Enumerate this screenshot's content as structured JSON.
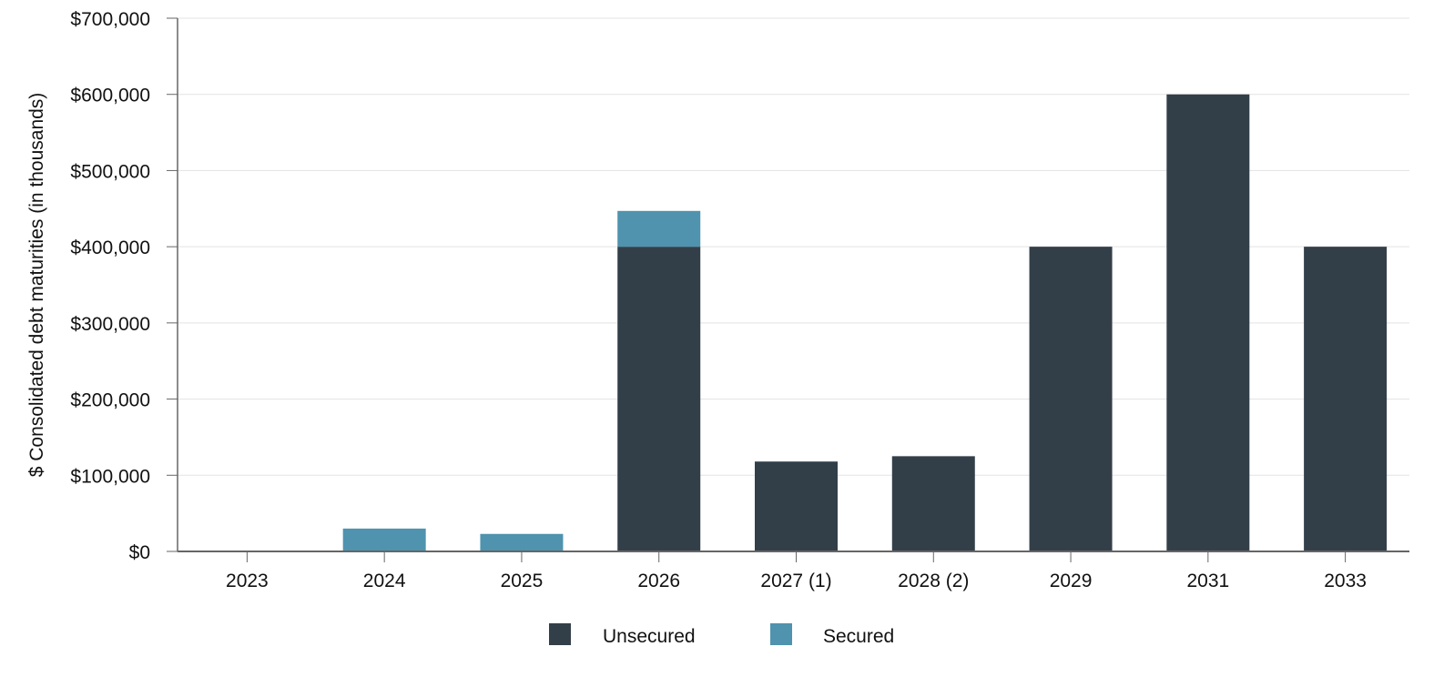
{
  "chart_data": {
    "type": "bar",
    "stacked": true,
    "ylabel": "$ Consolidated debt maturities (in thousands)",
    "xlabel": "",
    "categories": [
      "2023",
      "2024",
      "2025",
      "2026",
      "2027 (1)",
      "2028 (2)",
      "2029",
      "2031",
      "2033"
    ],
    "series": [
      {
        "name": "Unsecured",
        "color": "#333f48",
        "values": [
          0,
          0,
          0,
          400000,
          118000,
          125000,
          400000,
          600000,
          400000
        ]
      },
      {
        "name": "Secured",
        "color": "#4f93ae",
        "values": [
          0,
          30000,
          23000,
          47000,
          0,
          0,
          0,
          0,
          0
        ]
      }
    ],
    "ylim": [
      0,
      700000
    ],
    "yticks": [
      0,
      100000,
      200000,
      300000,
      400000,
      500000,
      600000,
      700000
    ],
    "ytick_labels": [
      "$0",
      "$100,000",
      "$200,000",
      "$300,000",
      "$400,000",
      "$500,000",
      "$600,000",
      "$700,000"
    ],
    "grid": true,
    "legend_position": "bottom-center"
  }
}
